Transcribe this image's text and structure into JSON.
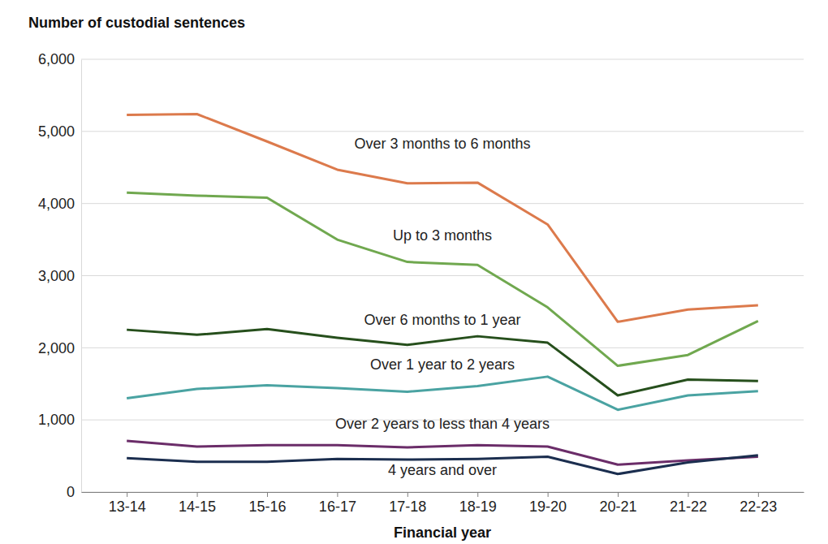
{
  "chart_data": {
    "type": "line",
    "y_label": "Number of custodial sentences",
    "x_label": "Financial year",
    "categories": [
      "13-14",
      "14-15",
      "15-16",
      "16-17",
      "17-18",
      "18-19",
      "19-20",
      "20-21",
      "21-22",
      "22-23"
    ],
    "series": [
      {
        "name": "Over 3 months to 6 months",
        "color": "#dc7a4c",
        "values": [
          5230,
          5240,
          4860,
          4470,
          4280,
          4290,
          3710,
          2360,
          2530,
          2590
        ]
      },
      {
        "name": "Up to 3 months",
        "color": "#70a84f",
        "values": [
          4150,
          4110,
          4080,
          3500,
          3190,
          3150,
          2560,
          1750,
          1900,
          2370
        ]
      },
      {
        "name": "Over 6 months to 1 year",
        "color": "#264f1c",
        "values": [
          2250,
          2180,
          2260,
          2140,
          2040,
          2160,
          2070,
          1340,
          1560,
          1540
        ]
      },
      {
        "name": "Over 1 year to 2 years",
        "color": "#4aa3a2",
        "values": [
          1300,
          1430,
          1480,
          1440,
          1390,
          1470,
          1600,
          1140,
          1340,
          1400
        ]
      },
      {
        "name": "Over 2 years to less than 4 years",
        "color": "#6b2d69",
        "values": [
          710,
          630,
          650,
          650,
          620,
          650,
          630,
          380,
          440,
          490
        ]
      },
      {
        "name": "4 years and over",
        "color": "#1b2e4f",
        "values": [
          470,
          420,
          420,
          460,
          450,
          460,
          490,
          250,
          410,
          510
        ]
      }
    ],
    "ylim": [
      0,
      6000
    ],
    "yticks": [
      0,
      {
        "value": 1000,
        "label": "1,000"
      },
      {
        "value": 2000,
        "label": "2,000"
      },
      {
        "value": 3000,
        "label": "3,000"
      },
      {
        "value": 4000,
        "label": "4,000"
      },
      {
        "value": 5000,
        "label": "5,000"
      },
      {
        "value": 6000,
        "label": "6,000"
      }
    ],
    "grid": true
  }
}
